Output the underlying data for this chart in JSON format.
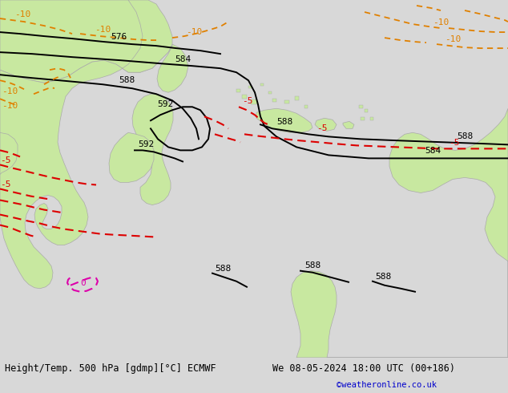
{
  "title_left": "Height/Temp. 500 hPa [gdmp][°C] ECMWF",
  "title_right": "We 08-05-2024 18:00 UTC (00+186)",
  "credit": "©weatheronline.co.uk",
  "bg_color": "#d8d8d8",
  "sea_color": "#d8d8d8",
  "land_green": "#c8e8a0",
  "coast_color": "#aaaaaa",
  "black": "#000000",
  "orange": "#e08000",
  "red": "#dd0000",
  "magenta": "#dd00aa",
  "blue": "#0000cc",
  "footer_bg": "#e8e8e8",
  "footer_text": "#000000",
  "font_footer": 8.5,
  "font_label": 8,
  "fig_w": 6.34,
  "fig_h": 4.9,
  "dpi": 100
}
